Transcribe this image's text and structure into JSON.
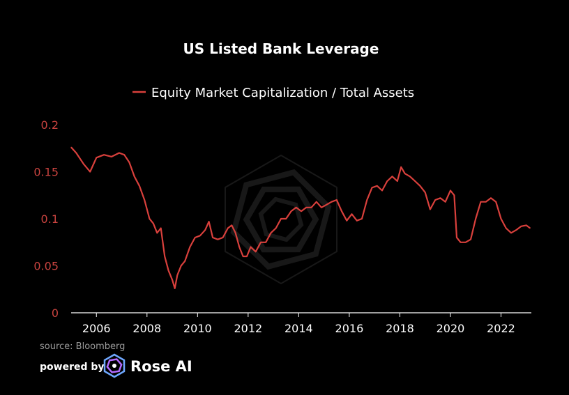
{
  "chart_data": {
    "type": "line",
    "title": "US Listed Bank Leverage",
    "legend_position": "top-center",
    "grid": false,
    "ylim": [
      0,
      0.2
    ],
    "xlim": [
      2005.0,
      2023.2
    ],
    "y_ticks": [
      "0",
      "0.05",
      "0.1",
      "0.15",
      "0.2"
    ],
    "x_ticks": [
      "2006",
      "2008",
      "2010",
      "2012",
      "2014",
      "2016",
      "2018",
      "2020",
      "2022"
    ],
    "series": [
      {
        "name": "Equity Market Capitalization / Total Assets",
        "color": "#d9403c",
        "x": [
          2005.0,
          2005.2,
          2005.5,
          2005.75,
          2006.0,
          2006.3,
          2006.6,
          2006.9,
          2007.1,
          2007.3,
          2007.5,
          2007.7,
          2007.9,
          2008.1,
          2008.25,
          2008.4,
          2008.55,
          2008.7,
          2008.85,
          2009.0,
          2009.1,
          2009.2,
          2009.35,
          2009.5,
          2009.7,
          2009.9,
          2010.1,
          2010.3,
          2010.45,
          2010.6,
          2010.8,
          2011.0,
          2011.2,
          2011.35,
          2011.5,
          2011.65,
          2011.8,
          2011.95,
          2012.1,
          2012.3,
          2012.5,
          2012.7,
          2012.9,
          2013.1,
          2013.3,
          2013.5,
          2013.7,
          2013.9,
          2014.1,
          2014.3,
          2014.5,
          2014.7,
          2014.9,
          2015.1,
          2015.3,
          2015.5,
          2015.7,
          2015.9,
          2016.1,
          2016.3,
          2016.5,
          2016.7,
          2016.9,
          2017.1,
          2017.3,
          2017.5,
          2017.7,
          2017.9,
          2018.05,
          2018.2,
          2018.4,
          2018.6,
          2018.8,
          2019.0,
          2019.2,
          2019.4,
          2019.6,
          2019.8,
          2020.0,
          2020.15,
          2020.25,
          2020.4,
          2020.6,
          2020.8,
          2021.0,
          2021.2,
          2021.4,
          2021.6,
          2021.8,
          2022.0,
          2022.2,
          2022.4,
          2022.6,
          2022.8,
          2023.0,
          2023.15
        ],
        "values": [
          0.176,
          0.17,
          0.158,
          0.15,
          0.165,
          0.168,
          0.166,
          0.17,
          0.168,
          0.16,
          0.145,
          0.135,
          0.12,
          0.1,
          0.095,
          0.085,
          0.09,
          0.06,
          0.045,
          0.035,
          0.026,
          0.04,
          0.05,
          0.055,
          0.07,
          0.08,
          0.082,
          0.088,
          0.097,
          0.08,
          0.078,
          0.08,
          0.09,
          0.093,
          0.085,
          0.07,
          0.06,
          0.06,
          0.07,
          0.065,
          0.075,
          0.075,
          0.085,
          0.09,
          0.1,
          0.1,
          0.108,
          0.112,
          0.108,
          0.112,
          0.112,
          0.118,
          0.112,
          0.115,
          0.118,
          0.12,
          0.108,
          0.098,
          0.105,
          0.098,
          0.1,
          0.12,
          0.133,
          0.135,
          0.13,
          0.14,
          0.145,
          0.14,
          0.155,
          0.148,
          0.145,
          0.14,
          0.135,
          0.128,
          0.11,
          0.12,
          0.122,
          0.118,
          0.13,
          0.125,
          0.08,
          0.075,
          0.075,
          0.078,
          0.1,
          0.118,
          0.118,
          0.122,
          0.118,
          0.1,
          0.09,
          0.085,
          0.088,
          0.092,
          0.093,
          0.09
        ]
      }
    ],
    "source": "source: Bloomberg"
  },
  "footer": {
    "powered_by": "powered by",
    "brand": "Rose AI"
  }
}
